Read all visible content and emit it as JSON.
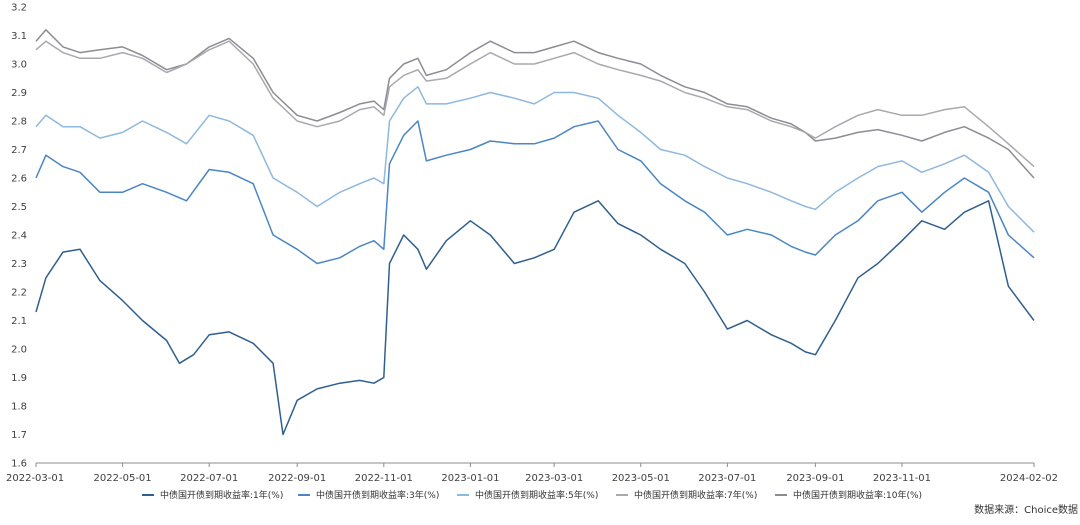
{
  "chart_data": {
    "type": "line",
    "ylim": [
      1.6,
      3.2
    ],
    "yticks": [
      "1.6",
      "1.7",
      "1.8",
      "1.9",
      "2.0",
      "2.1",
      "2.2",
      "2.3",
      "2.4",
      "2.5",
      "2.6",
      "2.7",
      "2.8",
      "2.9",
      "3.0",
      "3.1",
      "3.2"
    ],
    "xticks": [
      "2022-03-01",
      "2022-05-01",
      "2022-07-01",
      "2022-09-01",
      "2022-11-01",
      "2023-01-01",
      "2023-03-01",
      "2023-05-01",
      "2023-07-01",
      "2023-09-01",
      "2023-11-01",
      "2024-02-02"
    ],
    "x_range": [
      "2022-03-01",
      "2024-02-02"
    ],
    "grid": false,
    "legend_position": "bottom",
    "source": "数据来源：Choice数据",
    "series": [
      {
        "name": "中债国开债到期收益率:1年(%)",
        "color": "#2f5f8f",
        "x": [
          "2022-03-01",
          "2022-03-08",
          "2022-03-20",
          "2022-04-01",
          "2022-04-15",
          "2022-05-01",
          "2022-05-15",
          "2022-06-01",
          "2022-06-10",
          "2022-06-20",
          "2022-07-01",
          "2022-07-15",
          "2022-08-01",
          "2022-08-15",
          "2022-08-22",
          "2022-09-01",
          "2022-09-15",
          "2022-10-01",
          "2022-10-15",
          "2022-10-25",
          "2022-11-01",
          "2022-11-05",
          "2022-11-15",
          "2022-11-25",
          "2022-12-01",
          "2022-12-15",
          "2023-01-01",
          "2023-01-15",
          "2023-02-01",
          "2023-02-15",
          "2023-03-01",
          "2023-03-15",
          "2023-04-01",
          "2023-04-15",
          "2023-05-01",
          "2023-05-15",
          "2023-06-01",
          "2023-06-15",
          "2023-07-01",
          "2023-07-15",
          "2023-08-01",
          "2023-08-15",
          "2023-08-25",
          "2023-09-01",
          "2023-09-15",
          "2023-10-01",
          "2023-10-15",
          "2023-11-01",
          "2023-11-15",
          "2023-12-01",
          "2023-12-15",
          "2024-01-01",
          "2024-01-15",
          "2024-02-02"
        ],
        "values": [
          2.13,
          2.25,
          2.34,
          2.35,
          2.24,
          2.17,
          2.1,
          2.03,
          1.95,
          1.98,
          2.05,
          2.06,
          2.02,
          1.95,
          1.7,
          1.82,
          1.86,
          1.88,
          1.89,
          1.88,
          1.9,
          2.3,
          2.4,
          2.35,
          2.28,
          2.38,
          2.45,
          2.4,
          2.3,
          2.32,
          2.35,
          2.48,
          2.52,
          2.44,
          2.4,
          2.35,
          2.3,
          2.2,
          2.07,
          2.1,
          2.05,
          2.02,
          1.99,
          1.98,
          2.1,
          2.25,
          2.3,
          2.38,
          2.45,
          2.42,
          2.48,
          2.52,
          2.22,
          2.1
        ]
      },
      {
        "name": "中债国开债到期收益率:3年(%)",
        "color": "#4a86c5",
        "x": [
          "2022-03-01",
          "2022-03-08",
          "2022-03-20",
          "2022-04-01",
          "2022-04-15",
          "2022-05-01",
          "2022-05-15",
          "2022-06-01",
          "2022-06-15",
          "2022-07-01",
          "2022-07-15",
          "2022-08-01",
          "2022-08-15",
          "2022-09-01",
          "2022-09-15",
          "2022-10-01",
          "2022-10-15",
          "2022-10-25",
          "2022-11-01",
          "2022-11-05",
          "2022-11-15",
          "2022-11-25",
          "2022-12-01",
          "2022-12-15",
          "2023-01-01",
          "2023-01-15",
          "2023-02-01",
          "2023-02-15",
          "2023-03-01",
          "2023-03-15",
          "2023-04-01",
          "2023-04-15",
          "2023-05-01",
          "2023-05-15",
          "2023-06-01",
          "2023-06-15",
          "2023-07-01",
          "2023-07-15",
          "2023-08-01",
          "2023-08-15",
          "2023-08-25",
          "2023-09-01",
          "2023-09-15",
          "2023-10-01",
          "2023-10-15",
          "2023-11-01",
          "2023-11-15",
          "2023-12-01",
          "2023-12-15",
          "2024-01-01",
          "2024-01-15",
          "2024-02-02"
        ],
        "values": [
          2.6,
          2.68,
          2.64,
          2.62,
          2.55,
          2.55,
          2.58,
          2.55,
          2.52,
          2.63,
          2.62,
          2.58,
          2.4,
          2.35,
          2.3,
          2.32,
          2.36,
          2.38,
          2.35,
          2.65,
          2.75,
          2.8,
          2.66,
          2.68,
          2.7,
          2.73,
          2.72,
          2.72,
          2.74,
          2.78,
          2.8,
          2.7,
          2.66,
          2.58,
          2.52,
          2.48,
          2.4,
          2.42,
          2.4,
          2.36,
          2.34,
          2.33,
          2.4,
          2.45,
          2.52,
          2.55,
          2.48,
          2.55,
          2.6,
          2.55,
          2.4,
          2.32
        ]
      },
      {
        "name": "中债国开债到期收益率:5年(%)",
        "color": "#8fb8de",
        "x": [
          "2022-03-01",
          "2022-03-08",
          "2022-03-20",
          "2022-04-01",
          "2022-04-15",
          "2022-05-01",
          "2022-05-15",
          "2022-06-01",
          "2022-06-15",
          "2022-07-01",
          "2022-07-15",
          "2022-08-01",
          "2022-08-15",
          "2022-09-01",
          "2022-09-15",
          "2022-10-01",
          "2022-10-15",
          "2022-10-25",
          "2022-11-01",
          "2022-11-05",
          "2022-11-15",
          "2022-11-25",
          "2022-12-01",
          "2022-12-15",
          "2023-01-01",
          "2023-01-15",
          "2023-02-01",
          "2023-02-15",
          "2023-03-01",
          "2023-03-15",
          "2023-04-01",
          "2023-04-15",
          "2023-05-01",
          "2023-05-15",
          "2023-06-01",
          "2023-06-15",
          "2023-07-01",
          "2023-07-15",
          "2023-08-01",
          "2023-08-15",
          "2023-08-25",
          "2023-09-01",
          "2023-09-15",
          "2023-10-01",
          "2023-10-15",
          "2023-11-01",
          "2023-11-15",
          "2023-12-01",
          "2023-12-15",
          "2024-01-01",
          "2024-01-15",
          "2024-02-02"
        ],
        "values": [
          2.78,
          2.82,
          2.78,
          2.78,
          2.74,
          2.76,
          2.8,
          2.76,
          2.72,
          2.82,
          2.8,
          2.75,
          2.6,
          2.55,
          2.5,
          2.55,
          2.58,
          2.6,
          2.58,
          2.8,
          2.88,
          2.92,
          2.86,
          2.86,
          2.88,
          2.9,
          2.88,
          2.86,
          2.9,
          2.9,
          2.88,
          2.82,
          2.76,
          2.7,
          2.68,
          2.64,
          2.6,
          2.58,
          2.55,
          2.52,
          2.5,
          2.49,
          2.55,
          2.6,
          2.64,
          2.66,
          2.62,
          2.65,
          2.68,
          2.62,
          2.5,
          2.41
        ]
      },
      {
        "name": "中债国开债到期收益率:7年(%)",
        "color": "#a8a8b0",
        "x": [
          "2022-03-01",
          "2022-03-08",
          "2022-03-20",
          "2022-04-01",
          "2022-04-15",
          "2022-05-01",
          "2022-05-15",
          "2022-06-01",
          "2022-06-15",
          "2022-07-01",
          "2022-07-15",
          "2022-08-01",
          "2022-08-15",
          "2022-09-01",
          "2022-09-15",
          "2022-10-01",
          "2022-10-15",
          "2022-10-25",
          "2022-11-01",
          "2022-11-05",
          "2022-11-15",
          "2022-11-25",
          "2022-12-01",
          "2022-12-15",
          "2023-01-01",
          "2023-01-15",
          "2023-02-01",
          "2023-02-15",
          "2023-03-01",
          "2023-03-15",
          "2023-04-01",
          "2023-04-15",
          "2023-05-01",
          "2023-05-15",
          "2023-06-01",
          "2023-06-15",
          "2023-07-01",
          "2023-07-15",
          "2023-08-01",
          "2023-08-15",
          "2023-08-25",
          "2023-09-01",
          "2023-09-15",
          "2023-10-01",
          "2023-10-15",
          "2023-11-01",
          "2023-11-15",
          "2023-12-01",
          "2023-12-15",
          "2024-01-01",
          "2024-01-15",
          "2024-02-02"
        ],
        "values": [
          3.05,
          3.08,
          3.04,
          3.02,
          3.02,
          3.04,
          3.02,
          2.97,
          3.0,
          3.05,
          3.08,
          3.0,
          2.88,
          2.8,
          2.78,
          2.8,
          2.84,
          2.85,
          2.82,
          2.92,
          2.96,
          2.98,
          2.94,
          2.95,
          3.0,
          3.04,
          3.0,
          3.0,
          3.02,
          3.04,
          3.0,
          2.98,
          2.96,
          2.94,
          2.9,
          2.88,
          2.85,
          2.84,
          2.8,
          2.78,
          2.76,
          2.74,
          2.78,
          2.82,
          2.84,
          2.82,
          2.82,
          2.84,
          2.85,
          2.78,
          2.72,
          2.64
        ]
      },
      {
        "name": "中债国开债到期收益率:10年(%)",
        "color": "#8c8c94",
        "x": [
          "2022-03-01",
          "2022-03-08",
          "2022-03-20",
          "2022-04-01",
          "2022-04-15",
          "2022-05-01",
          "2022-05-15",
          "2022-06-01",
          "2022-06-15",
          "2022-07-01",
          "2022-07-15",
          "2022-08-01",
          "2022-08-15",
          "2022-09-01",
          "2022-09-15",
          "2022-10-01",
          "2022-10-15",
          "2022-10-25",
          "2022-11-01",
          "2022-11-05",
          "2022-11-15",
          "2022-11-25",
          "2022-12-01",
          "2022-12-15",
          "2023-01-01",
          "2023-01-15",
          "2023-02-01",
          "2023-02-15",
          "2023-03-01",
          "2023-03-15",
          "2023-04-01",
          "2023-04-15",
          "2023-05-01",
          "2023-05-15",
          "2023-06-01",
          "2023-06-15",
          "2023-07-01",
          "2023-07-15",
          "2023-08-01",
          "2023-08-15",
          "2023-08-25",
          "2023-09-01",
          "2023-09-15",
          "2023-10-01",
          "2023-10-15",
          "2023-11-01",
          "2023-11-15",
          "2023-12-01",
          "2023-12-15",
          "2024-01-01",
          "2024-01-15",
          "2024-02-02"
        ],
        "values": [
          3.08,
          3.12,
          3.06,
          3.04,
          3.05,
          3.06,
          3.03,
          2.98,
          3.0,
          3.06,
          3.09,
          3.02,
          2.9,
          2.82,
          2.8,
          2.83,
          2.86,
          2.87,
          2.84,
          2.95,
          3.0,
          3.02,
          2.96,
          2.98,
          3.04,
          3.08,
          3.04,
          3.04,
          3.06,
          3.08,
          3.04,
          3.02,
          3.0,
          2.96,
          2.92,
          2.9,
          2.86,
          2.85,
          2.81,
          2.79,
          2.76,
          2.73,
          2.74,
          2.76,
          2.77,
          2.75,
          2.73,
          2.76,
          2.78,
          2.74,
          2.7,
          2.6
        ]
      }
    ]
  }
}
